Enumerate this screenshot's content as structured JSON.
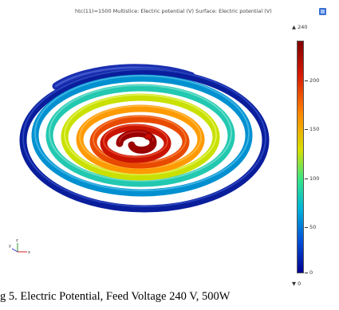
{
  "plot": {
    "title": "htc(11)=1500  Multislice: Electric potential (V)  Surface: Electric potential (V)"
  },
  "colorbar": {
    "max_label": "▲ 240",
    "min_label": "▼ 0",
    "ticks": [
      "200",
      "150",
      "100",
      "50",
      "0"
    ],
    "colors": [
      "#7f0000",
      "#d81a00",
      "#ff8a00",
      "#d6e000",
      "#34e58a",
      "#00b4d8",
      "#0050d8",
      "#00008f"
    ]
  },
  "axes_triad": {
    "x": "x",
    "y": "y",
    "z": "z"
  },
  "caption": "g 5. Electric Potential, Feed Voltage 240 V, 500W"
}
